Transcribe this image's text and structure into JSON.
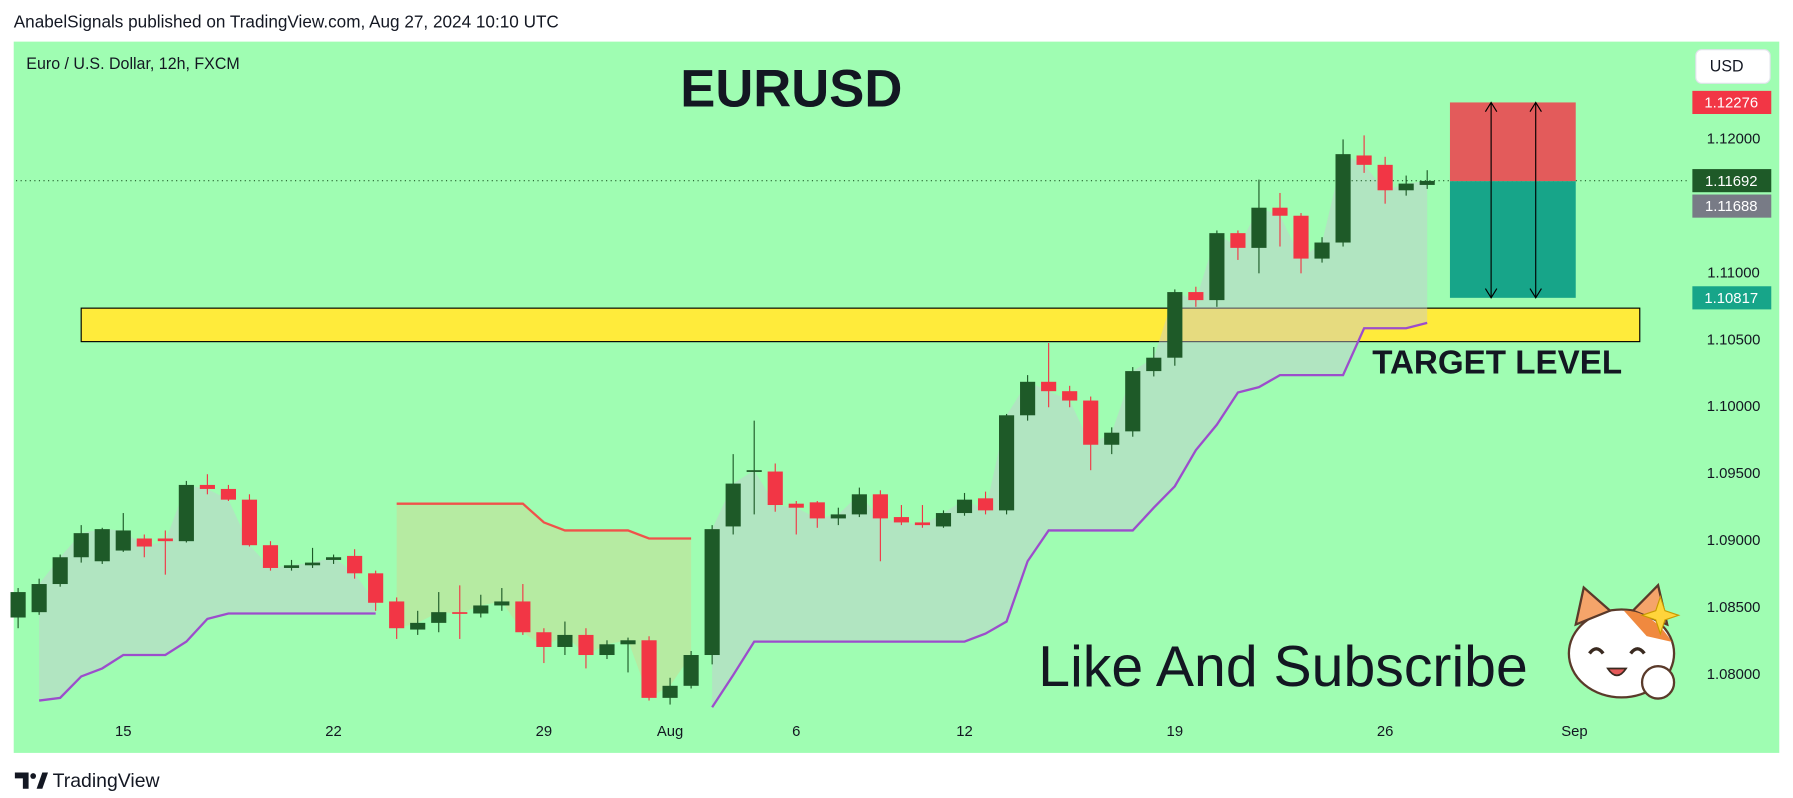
{
  "header": {
    "text": "AnabelSignals published on TradingView.com, Aug 27, 2024 10:10 UTC"
  },
  "footer": {
    "brand": "TradingView"
  },
  "chart_data": {
    "type": "candlestick",
    "title": "EURUSD",
    "subtitle": "Euro / U.S. Dollar, 12h, FXCM",
    "currency": "USD",
    "up_color": "#1e5a28",
    "down_color": "#f23645",
    "open": [
      1.0843,
      1.0847,
      1.0868,
      1.0888,
      1.0885,
      1.0893,
      1.0902,
      1.0902,
      1.09,
      1.0942,
      1.0939,
      1.0931,
      1.0897,
      1.088,
      1.0882,
      1.0886,
      1.0889,
      1.0876,
      1.0855,
      1.0834,
      1.0839,
      1.0847,
      1.0846,
      1.0852,
      1.0855,
      1.0832,
      1.0821,
      1.083,
      1.0815,
      1.0823,
      1.0826,
      1.0783,
      1.0792,
      1.0815,
      1.0911,
      1.0952,
      1.0952,
      1.0928,
      1.0929,
      1.0917,
      1.092,
      1.0935,
      1.0918,
      1.0914,
      1.0911,
      1.0921,
      1.0932,
      1.0923,
      1.0994,
      1.1019,
      1.1012,
      1.1005,
      1.0972,
      1.0982,
      1.1027,
      1.1037,
      1.1086,
      1.108,
      1.113,
      1.1119,
      1.1149,
      1.1143,
      1.1111,
      1.1123,
      1.1188,
      1.1181,
      1.1162,
      1.1166
    ],
    "high": [
      1.0865,
      1.0872,
      1.089,
      1.0912,
      1.091,
      1.0921,
      1.0905,
      1.0908,
      1.0945,
      1.095,
      1.0942,
      1.0935,
      1.09,
      1.0886,
      1.0895,
      1.089,
      1.0894,
      1.0878,
      1.0858,
      1.0848,
      1.0862,
      1.0867,
      1.086,
      1.0865,
      1.0868,
      1.0835,
      1.084,
      1.0835,
      1.0826,
      1.0828,
      1.0829,
      1.0798,
      1.0818,
      1.0912,
      1.0965,
      1.099,
      1.0958,
      1.093,
      1.093,
      1.0925,
      1.094,
      1.0938,
      1.0927,
      1.0927,
      1.0923,
      1.0936,
      1.0937,
      1.0995,
      1.1024,
      1.1048,
      1.1016,
      1.1008,
      1.0985,
      1.103,
      1.1045,
      1.1088,
      1.109,
      1.1132,
      1.1132,
      1.117,
      1.116,
      1.1145,
      1.1127,
      1.12,
      1.1203,
      1.1187,
      1.1173,
      1.1177
    ],
    "low": [
      1.0835,
      1.0845,
      1.0866,
      1.0884,
      1.0883,
      1.0892,
      1.0888,
      1.0875,
      1.0899,
      1.0935,
      1.093,
      1.0896,
      1.0878,
      1.0878,
      1.088,
      1.0883,
      1.0872,
      1.0848,
      1.0827,
      1.083,
      1.0832,
      1.0827,
      1.0843,
      1.0848,
      1.083,
      1.0809,
      1.0815,
      1.0805,
      1.0812,
      1.0802,
      1.0781,
      1.0778,
      1.079,
      1.0808,
      1.0905,
      1.092,
      1.0922,
      1.0905,
      1.091,
      1.0912,
      1.0918,
      1.0885,
      1.0912,
      1.091,
      1.091,
      1.0919,
      1.092,
      1.092,
      1.099,
      1.1,
      1.1,
      1.0953,
      1.0965,
      1.0978,
      1.1023,
      1.1031,
      1.1075,
      1.1075,
      1.111,
      1.11,
      1.112,
      1.11,
      1.1108,
      1.112,
      1.1175,
      1.1152,
      1.1158,
      1.1163
    ],
    "close": [
      1.0862,
      1.0868,
      1.0888,
      1.0906,
      1.0909,
      1.0908,
      1.0896,
      1.09,
      1.0942,
      1.0939,
      1.0931,
      1.0897,
      1.088,
      1.0882,
      1.0884,
      1.0888,
      1.0876,
      1.0854,
      1.0835,
      1.0839,
      1.0847,
      1.0846,
      1.0852,
      1.0855,
      1.0832,
      1.0821,
      1.083,
      1.0815,
      1.0823,
      1.0826,
      1.0783,
      1.0792,
      1.0815,
      1.0909,
      1.0943,
      1.0953,
      1.0927,
      1.0925,
      1.0917,
      1.092,
      1.0935,
      1.0917,
      1.0914,
      1.0912,
      1.0921,
      1.0931,
      1.0923,
      1.0994,
      1.1019,
      1.1012,
      1.1005,
      1.0972,
      1.0981,
      1.1027,
      1.1037,
      1.1086,
      1.108,
      1.113,
      1.1119,
      1.1149,
      1.1143,
      1.1111,
      1.1123,
      1.1189,
      1.1181,
      1.1162,
      1.1167,
      1.1169
    ],
    "supertrend_up": [
      null,
      1.0781,
      1.0783,
      1.0799,
      1.0805,
      1.0815,
      1.0815,
      1.0815,
      1.0825,
      1.0842,
      1.0846,
      1.0846,
      1.0846,
      1.0846,
      1.0846,
      1.0846,
      1.0846,
      1.0846,
      null,
      null,
      null,
      null,
      null,
      null,
      null,
      null,
      null,
      null,
      null,
      null,
      null,
      null,
      null,
      1.0776,
      1.08,
      1.0825,
      1.0825,
      1.0825,
      1.0825,
      1.0825,
      1.0825,
      1.0825,
      1.0825,
      1.0825,
      1.0825,
      1.0825,
      1.0831,
      1.084,
      1.0885,
      1.0908,
      1.0908,
      1.0908,
      1.0908,
      1.0908,
      1.0925,
      1.0941,
      1.0968,
      1.0987,
      1.1011,
      1.1015,
      1.1024,
      1.1024,
      1.1024,
      1.1024,
      1.1059,
      1.1059,
      1.1059,
      1.1063
    ],
    "supertrend_down": [
      null,
      null,
      null,
      null,
      null,
      null,
      null,
      null,
      null,
      null,
      null,
      null,
      null,
      null,
      null,
      null,
      null,
      null,
      1.0928,
      1.0928,
      1.0928,
      1.0928,
      1.0928,
      1.0928,
      1.0928,
      1.0914,
      1.0908,
      1.0908,
      1.0908,
      1.0908,
      1.0902,
      1.0902,
      1.0902,
      null,
      null,
      null,
      null,
      null,
      null,
      null,
      null,
      null,
      null,
      null,
      null,
      null,
      null,
      null,
      null,
      null,
      null,
      null,
      null,
      null,
      null,
      null,
      null,
      null,
      null,
      null,
      null,
      null,
      null,
      null,
      null,
      null,
      null,
      null
    ],
    "supertrend_up_color": "#9c4dcc",
    "supertrend_down_color": "#f0524a",
    "xlim": [
      -0.1,
      79.5
    ],
    "ylim": [
      1.0773,
      1.1273
    ],
    "xticks": [
      {
        "value": 5,
        "label": "15"
      },
      {
        "value": 15,
        "label": "22"
      },
      {
        "value": 25,
        "label": "29"
      },
      {
        "value": 31,
        "label": "Aug"
      },
      {
        "value": 37,
        "label": "6"
      },
      {
        "value": 45,
        "label": "12"
      },
      {
        "value": 55,
        "label": "19"
      },
      {
        "value": 65,
        "label": "26"
      },
      {
        "value": 74,
        "label": "Sep"
      }
    ],
    "yticks": [
      {
        "value": 1.12,
        "label": "1.12000"
      },
      {
        "value": 1.11,
        "label": "1.11000"
      },
      {
        "value": 1.105,
        "label": "1.10500"
      },
      {
        "value": 1.1,
        "label": "1.10000"
      },
      {
        "value": 1.095,
        "label": "1.09500"
      },
      {
        "value": 1.09,
        "label": "1.09000"
      },
      {
        "value": 1.085,
        "label": "1.08500"
      },
      {
        "value": 1.08,
        "label": "1.08000"
      }
    ],
    "grid": false,
    "last_price": 1.11692,
    "position": {
      "stop": 1.12276,
      "entry": 1.11688,
      "target": 1.10817
    },
    "zone": {
      "top": 1.1074,
      "bottom": 1.1049,
      "label": "TARGET LEVEL",
      "color": "#ffeb3b"
    },
    "annotation": "Like And Subscribe"
  }
}
